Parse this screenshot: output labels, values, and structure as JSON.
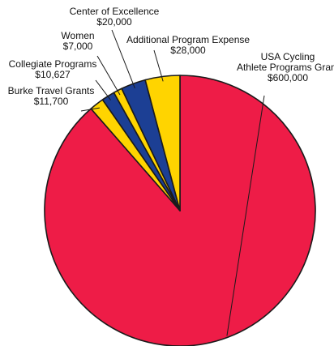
{
  "chart_data": {
    "type": "pie",
    "title": "",
    "slices": [
      {
        "label_lines": [
          "USA Cycling",
          "Athlete Programs Grant"
        ],
        "value_text": "$600,000",
        "value": 600000,
        "color": "#ee1c47"
      },
      {
        "label_lines": [
          "Burke Travel Grants"
        ],
        "value_text": "$11,700",
        "value": 11700,
        "color": "#ffd400"
      },
      {
        "label_lines": [
          "Collegiate Programs"
        ],
        "value_text": "$10,627",
        "value": 10627,
        "color": "#1c3f94"
      },
      {
        "label_lines": [
          "Women"
        ],
        "value_text": "$7,000",
        "value": 7000,
        "color": "#ffd400"
      },
      {
        "label_lines": [
          "Center of Excellence"
        ],
        "value_text": "$20,000",
        "value": 20000,
        "color": "#1c3f94"
      },
      {
        "label_lines": [
          "Additional Program Expense"
        ],
        "value_text": "$28,000",
        "value": 28000,
        "color": "#ffd400"
      }
    ]
  }
}
